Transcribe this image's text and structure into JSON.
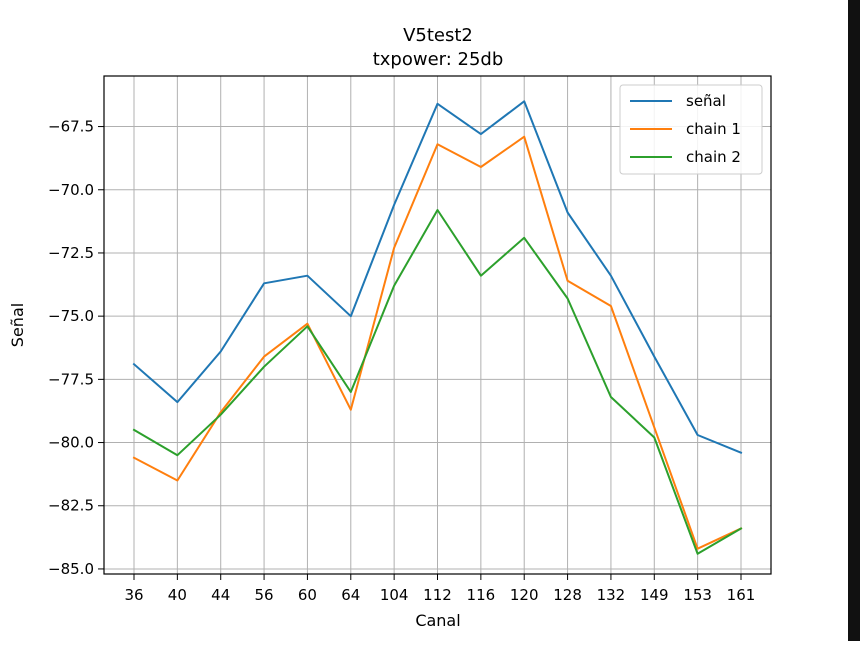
{
  "chart_data": {
    "type": "line",
    "title": "V5test2",
    "subtitle": "txpower: 25db",
    "xlabel": "Canal",
    "ylabel": "Señal",
    "categories": [
      "36",
      "40",
      "44",
      "56",
      "60",
      "64",
      "104",
      "112",
      "116",
      "120",
      "128",
      "132",
      "149",
      "153",
      "161"
    ],
    "yticks": [
      "−85.0",
      "−82.5",
      "−80.0",
      "−77.5",
      "−75.0",
      "−72.5",
      "−70.0",
      "−67.5"
    ],
    "ylim": [
      -85.2,
      -65.5
    ],
    "grid": true,
    "legend_position": "top-right",
    "series": [
      {
        "name": "señal",
        "color": "#1f77b4",
        "values": [
          -76.9,
          -78.4,
          -76.4,
          -73.7,
          -73.4,
          -75.0,
          -70.6,
          -66.6,
          -67.8,
          -66.5,
          -70.9,
          -73.4,
          -76.6,
          -79.7,
          -80.4
        ]
      },
      {
        "name": "chain 1",
        "color": "#ff7f0e",
        "values": [
          -80.6,
          -81.5,
          -78.8,
          -76.6,
          -75.3,
          -78.7,
          -72.3,
          -68.2,
          -69.1,
          -67.9,
          -73.6,
          -74.6,
          -79.4,
          -84.2,
          -83.4
        ]
      },
      {
        "name": "chain 2",
        "color": "#2ca02c",
        "values": [
          -79.5,
          -80.5,
          -78.9,
          -77.0,
          -75.4,
          -78.0,
          -73.8,
          -70.8,
          -73.4,
          -71.9,
          -74.3,
          -78.2,
          -79.8,
          -84.4,
          -83.4
        ]
      }
    ]
  }
}
